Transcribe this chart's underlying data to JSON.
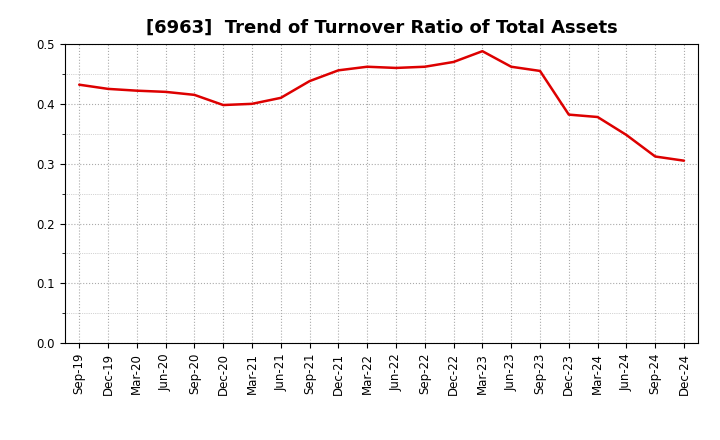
{
  "title": "[6963]  Trend of Turnover Ratio of Total Assets",
  "x_labels": [
    "Sep-19",
    "Dec-19",
    "Mar-20",
    "Jun-20",
    "Sep-20",
    "Dec-20",
    "Mar-21",
    "Jun-21",
    "Sep-21",
    "Dec-21",
    "Mar-22",
    "Jun-22",
    "Sep-22",
    "Dec-22",
    "Mar-23",
    "Jun-23",
    "Sep-23",
    "Dec-23",
    "Mar-24",
    "Jun-24",
    "Sep-24",
    "Dec-24"
  ],
  "y_values": [
    0.432,
    0.425,
    0.422,
    0.42,
    0.415,
    0.398,
    0.4,
    0.41,
    0.438,
    0.456,
    0.462,
    0.46,
    0.462,
    0.47,
    0.488,
    0.462,
    0.455,
    0.382,
    0.378,
    0.348,
    0.312,
    0.305
  ],
  "line_color": "#dd0000",
  "line_width": 1.8,
  "ylim": [
    0.0,
    0.5
  ],
  "yticks": [
    0.0,
    0.1,
    0.2,
    0.3,
    0.4,
    0.5
  ],
  "grid_color": "#aaaaaa",
  "background_color": "#ffffff",
  "title_fontsize": 13,
  "tick_fontsize": 8.5
}
